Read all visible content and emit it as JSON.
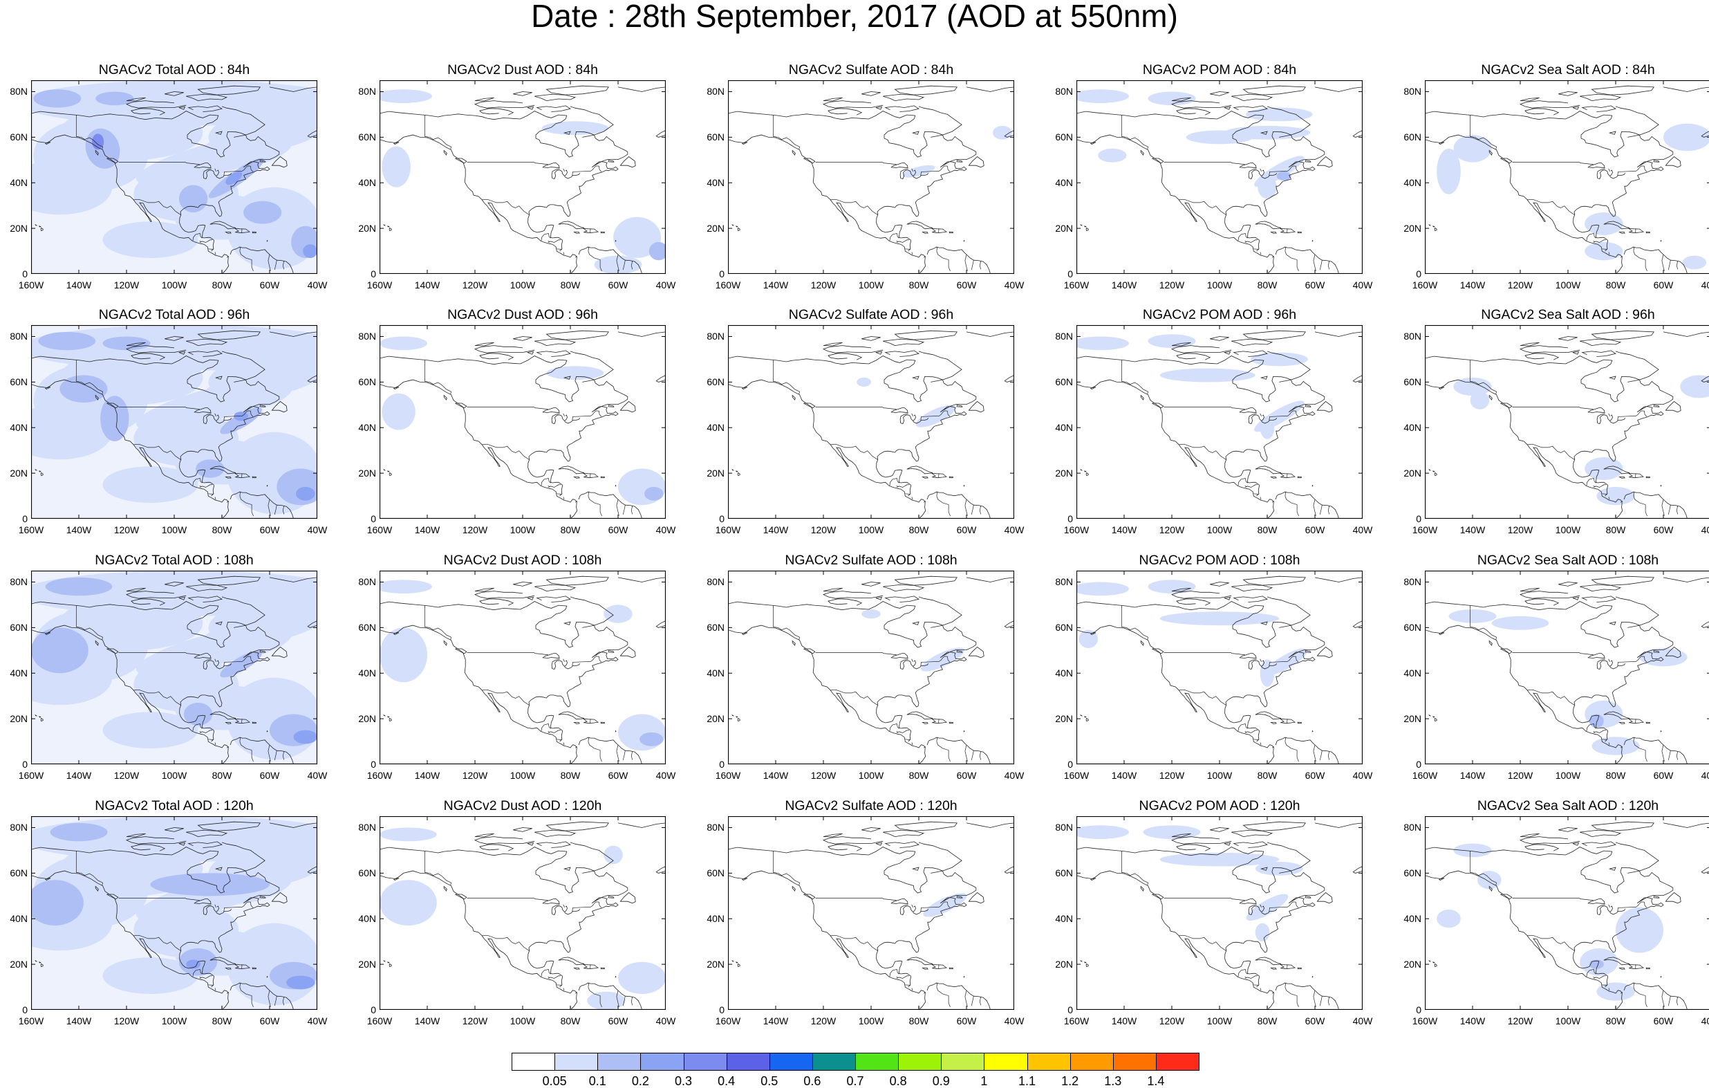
{
  "title": "Date : 28th September, 2017 (AOD at 550nm)",
  "y_ticks": [
    "80N",
    "60N",
    "40N",
    "20N",
    "0"
  ],
  "x_ticks": [
    "160W",
    "140W",
    "120W",
    "100W",
    "80W",
    "60W",
    "40W"
  ],
  "rows": [
    {
      "hour": "84h",
      "panels": [
        {
          "title": "NGACv2 Total AOD : 84h",
          "species": "total"
        },
        {
          "title": "NGACv2 Dust AOD : 84h",
          "species": "dust"
        },
        {
          "title": "NGACv2 Sulfate AOD : 84h",
          "species": "sulfate"
        },
        {
          "title": "NGACv2 POM AOD : 84h",
          "species": "pom"
        },
        {
          "title": "NGACv2 Sea Salt AOD : 84h",
          "species": "seasalt"
        }
      ]
    },
    {
      "hour": "96h",
      "panels": [
        {
          "title": "NGACv2 Total AOD : 96h",
          "species": "total"
        },
        {
          "title": "NGACv2 Dust AOD : 96h",
          "species": "dust"
        },
        {
          "title": "NGACv2 Sulfate AOD : 96h",
          "species": "sulfate"
        },
        {
          "title": "NGACv2 POM AOD : 96h",
          "species": "pom"
        },
        {
          "title": "NGACv2 Sea Salt AOD : 96h",
          "species": "seasalt"
        }
      ]
    },
    {
      "hour": "108h",
      "panels": [
        {
          "title": "NGACv2 Total AOD : 108h",
          "species": "total"
        },
        {
          "title": "NGACv2 Dust AOD : 108h",
          "species": "dust"
        },
        {
          "title": "NGACv2 Sulfate AOD : 108h",
          "species": "sulfate"
        },
        {
          "title": "NGACv2 POM AOD : 108h",
          "species": "pom"
        },
        {
          "title": "NGACv2 Sea Salt AOD : 108h",
          "species": "seasalt"
        }
      ]
    },
    {
      "hour": "120h",
      "panels": [
        {
          "title": "NGACv2 Total AOD : 120h",
          "species": "total"
        },
        {
          "title": "NGACv2 Dust AOD : 120h",
          "species": "dust"
        },
        {
          "title": "NGACv2 Sulfate AOD : 120h",
          "species": "sulfate"
        },
        {
          "title": "NGACv2 POM AOD : 120h",
          "species": "pom"
        },
        {
          "title": "NGACv2 Sea Salt  AOD : 120h",
          "species": "seasalt"
        }
      ]
    }
  ],
  "colorbar": {
    "labels": [
      "0.05",
      "0.1",
      "0.2",
      "0.3",
      "0.4",
      "0.5",
      "0.6",
      "0.7",
      "0.8",
      "0.9",
      "1",
      "1.1",
      "1.2",
      "1.3",
      "1.4"
    ],
    "colors": [
      "#ffffff",
      "#d4dffb",
      "#aebff6",
      "#8aa3f3",
      "#7b8bef",
      "#5c62e8",
      "#1766f2",
      "#0b8f8f",
      "#53e415",
      "#9ef208",
      "#c5f047",
      "#ffff00",
      "#ffc400",
      "#ff9a00",
      "#ff7200",
      "#ff2b1a"
    ]
  }
}
